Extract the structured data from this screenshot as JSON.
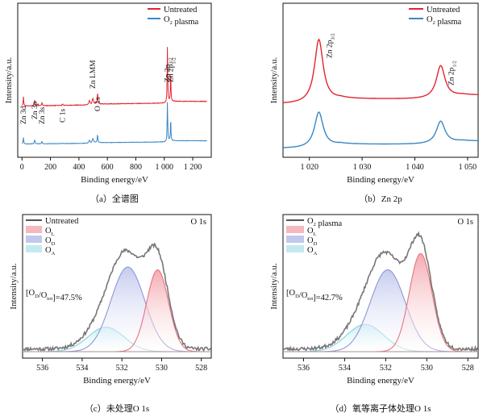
{
  "chart_data": [
    {
      "id": "a",
      "type": "line",
      "caption": "（a）全谱图",
      "xlabel": "Binding energy/eV",
      "ylabel": "Intensity/a.u.",
      "xlim": [
        -30,
        1330
      ],
      "xticks": [
        0,
        200,
        400,
        600,
        800,
        1000,
        1200
      ],
      "xtick_labels": [
        "0",
        "200",
        "400",
        "600",
        "800",
        "1 000",
        "1 200"
      ],
      "legend": [
        {
          "name": "Untreated",
          "color": "#e32430"
        },
        {
          "name": "O2 plasma",
          "main": "O",
          "sub": "2",
          "tail": " plasma",
          "color": "#3a86c4"
        }
      ],
      "peak_labels": [
        {
          "main": "Zn 3d",
          "sub": "",
          "tail": "",
          "x": 10
        },
        {
          "main": "Zn 3p",
          "sub": "",
          "tail": "",
          "x": 89
        },
        {
          "main": "Zn 3s",
          "sub": "",
          "tail": "",
          "x": 140
        },
        {
          "main": "C 1s",
          "sub": "",
          "tail": "",
          "x": 285
        },
        {
          "main": "Zn LMM",
          "sub": "",
          "tail": "",
          "x": 498
        },
        {
          "main": "O 1s",
          "sub": "",
          "tail": "",
          "x": 531
        },
        {
          "main": "Zn 2p",
          "sub": "3/2",
          "tail": "",
          "x": 1022
        },
        {
          "main": "Zn 2p",
          "sub": "1/2",
          "tail": "",
          "x": 1045
        }
      ],
      "series": [
        {
          "name": "Untreated",
          "color": "#e32430",
          "x": [
            0,
            10,
            89,
            140,
            285,
            498,
            531,
            1022,
            1045,
            1300
          ],
          "y": [
            0.12,
            0.22,
            0.2,
            0.16,
            0.18,
            0.42,
            0.34,
            1.0,
            0.78,
            0.62
          ]
        },
        {
          "name": "O2 plasma",
          "color": "#3a86c4",
          "x": [
            0,
            10,
            89,
            140,
            285,
            498,
            531,
            1022,
            1045,
            1300
          ],
          "y": [
            0.1,
            0.18,
            0.16,
            0.13,
            0.12,
            0.36,
            0.33,
            0.8,
            0.6,
            0.5
          ]
        }
      ]
    },
    {
      "id": "b",
      "type": "line",
      "caption": "（b）Zn 2p",
      "xlabel": "Binding energy/eV",
      "ylabel": "Intensity/a.u.",
      "xlim": [
        1015,
        1052
      ],
      "xticks": [
        1020,
        1030,
        1040,
        1050
      ],
      "xtick_labels": [
        "1 020",
        "1 030",
        "1 040",
        "1 050"
      ],
      "legend": [
        {
          "name": "Untreated",
          "color": "#e32430"
        },
        {
          "name": "O2 plasma",
          "main": "O",
          "sub": "2",
          "tail": " plasma",
          "color": "#3a86c4"
        }
      ],
      "peak_labels": [
        {
          "main": "Zn 2p",
          "sub": "3/2",
          "tail": "",
          "x": 1021.8
        },
        {
          "main": "Zn 2p",
          "sub": "1/2",
          "tail": "",
          "x": 1044.9
        }
      ],
      "series": [
        {
          "name": "Untreated",
          "color": "#e32430",
          "x": [
            1021.8,
            1044.9
          ],
          "y": [
            1.0,
            0.52
          ]
        },
        {
          "name": "O2 plasma",
          "color": "#3a86c4",
          "x": [
            1021.8,
            1044.9
          ],
          "y": [
            0.5,
            0.32
          ]
        }
      ]
    },
    {
      "id": "c",
      "type": "line",
      "caption": "（c）未处理O 1s",
      "xlabel": "Binding energy/eV",
      "ylabel": "Intensity/a.u.",
      "title_right": "O 1s",
      "xlim": [
        537,
        527.5
      ],
      "xticks": [
        536,
        534,
        532,
        530,
        528
      ],
      "xtick_labels": [
        "536",
        "534",
        "532",
        "530",
        "528"
      ],
      "legend": [
        {
          "name": "Untreated",
          "color": "#555555"
        },
        {
          "name": "OL",
          "main": "O",
          "sub": "L",
          "tail": "",
          "color": "#f0a0a8"
        },
        {
          "name": "OD",
          "main": "O",
          "sub": "D",
          "tail": "",
          "color": "#aeb6e6"
        },
        {
          "name": "OA",
          "main": "O",
          "sub": "A",
          "tail": "",
          "color": "#b0e2ec"
        }
      ],
      "ratio": {
        "parts": [
          [
            "[O",
            ""
          ],
          [
            "D",
            "sub"
          ],
          [
            "/O",
            ""
          ],
          [
            "tot",
            "sub"
          ],
          [
            "]=47.5%",
            ""
          ]
        ]
      },
      "components": [
        {
          "name": "OL",
          "center": 530.2,
          "height": 0.6
        },
        {
          "name": "OD",
          "center": 531.7,
          "height": 0.62
        },
        {
          "name": "OA",
          "center": 532.8,
          "height": 0.18
        }
      ]
    },
    {
      "id": "d",
      "type": "line",
      "caption": "（d）氧等离子体处理O 1s",
      "xlabel": "Binding energy/eV",
      "ylabel": "Intensity/a.u.",
      "title_right": "O 1s",
      "xlim": [
        537,
        527.5
      ],
      "xticks": [
        536,
        534,
        532,
        530,
        528
      ],
      "xtick_labels": [
        "536",
        "534",
        "532",
        "530",
        "528"
      ],
      "legend": [
        {
          "name": "O2 plasma",
          "main": "O",
          "sub": "2",
          "tail": " plasma",
          "color": "#555555"
        },
        {
          "name": "OL",
          "main": "O",
          "sub": "L",
          "tail": "",
          "color": "#f0a0a8"
        },
        {
          "name": "OD",
          "main": "O",
          "sub": "D",
          "tail": "",
          "color": "#aeb6e6"
        },
        {
          "name": "OA",
          "main": "O",
          "sub": "A",
          "tail": "",
          "color": "#b0e2ec"
        }
      ],
      "ratio": {
        "parts": [
          [
            "[O",
            ""
          ],
          [
            "D",
            "sub"
          ],
          [
            "/O",
            ""
          ],
          [
            "tot",
            "sub"
          ],
          [
            "]=42.7%",
            ""
          ]
        ]
      },
      "components": [
        {
          "name": "OL",
          "center": 530.3,
          "height": 0.72
        },
        {
          "name": "OD",
          "center": 531.9,
          "height": 0.6
        },
        {
          "name": "OA",
          "center": 533.0,
          "height": 0.2
        }
      ]
    }
  ]
}
